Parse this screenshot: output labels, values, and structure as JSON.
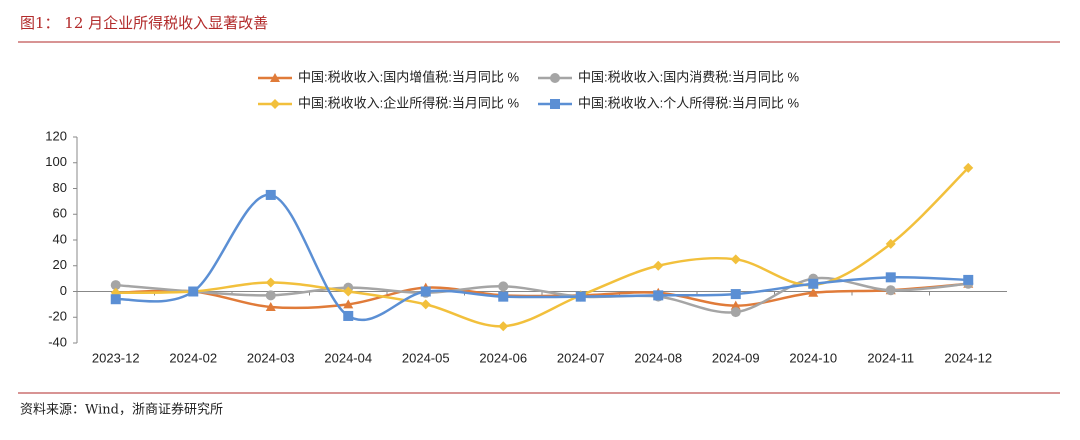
{
  "chart_data": {
    "type": "line",
    "title": "图1：  12 月企业所得税收入显著改善",
    "source": "资料来源：Wind，浙商证券研究所",
    "categories": [
      "2023-12",
      "2024-02",
      "2024-03",
      "2024-04",
      "2024-05",
      "2024-06",
      "2024-07",
      "2024-08",
      "2024-09",
      "2024-10",
      "2024-11",
      "2024-12"
    ],
    "series": [
      {
        "name": "中国:税收收入:国内增值税:当月同比 %",
        "color": "#e07b39",
        "marker": "triangle",
        "values": [
          -1,
          0,
          -12,
          -10,
          3,
          -3,
          -3,
          -1,
          -11,
          -1,
          1,
          6
        ]
      },
      {
        "name": "中国:税收收入:国内消费税:当月同比 %",
        "color": "#a5a5a5",
        "marker": "circle",
        "values": [
          5,
          0,
          -3,
          3,
          -1,
          4,
          -4,
          -4,
          -16,
          10,
          1,
          6
        ]
      },
      {
        "name": "中国:税收收入:企业所得税:当月同比 %",
        "color": "#f2c03c",
        "marker": "diamond",
        "values": [
          -1,
          0,
          7,
          0,
          -10,
          -27,
          -3,
          20,
          25,
          5,
          37,
          96
        ]
      },
      {
        "name": "中国:税收收入:个人所得税:当月同比 %",
        "color": "#5b8fd4",
        "marker": "square",
        "values": [
          -6,
          0,
          75,
          -19,
          0,
          -4,
          -4,
          -3,
          -2,
          6,
          11,
          9
        ]
      }
    ],
    "ylim": [
      -40,
      120
    ],
    "yticks": [
      -40,
      -20,
      0,
      20,
      40,
      60,
      80,
      100,
      120
    ],
    "grid": false,
    "legend": "top",
    "smooth": true
  }
}
